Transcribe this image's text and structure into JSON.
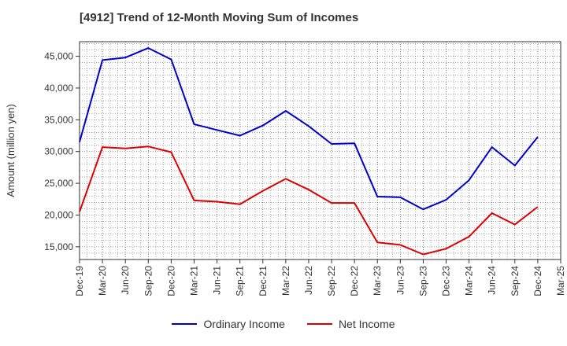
{
  "chart_data": {
    "type": "line",
    "title": "[4912]  Trend of 12-Month Moving Sum of Incomes",
    "xlabel": "",
    "ylabel": "Amount (million yen)",
    "ylim": [
      13000,
      47300
    ],
    "yticks": [
      15000,
      20000,
      25000,
      30000,
      35000,
      40000,
      45000
    ],
    "ytick_labels": [
      "15,000",
      "20,000",
      "25,000",
      "30,000",
      "35,000",
      "40,000",
      "45,000"
    ],
    "categories": [
      "Dec-19",
      "Mar-20",
      "Jun-20",
      "Sep-20",
      "Dec-20",
      "Mar-21",
      "Jun-21",
      "Sep-21",
      "Dec-21",
      "Mar-22",
      "Jun-22",
      "Sep-22",
      "Dec-22",
      "Mar-23",
      "Jun-23",
      "Sep-23",
      "Dec-23",
      "Mar-24",
      "Jun-24",
      "Sep-24",
      "Dec-24",
      "Mar-25"
    ],
    "series": [
      {
        "name": "Ordinary Income",
        "color": "#0000cc",
        "values": [
          31500,
          44400,
          44800,
          46300,
          44500,
          34300,
          33400,
          32500,
          34100,
          36400,
          34000,
          31200,
          31300,
          22900,
          22800,
          20900,
          22400,
          25500,
          30700,
          27800,
          32300,
          null
        ]
      },
      {
        "name": "Net Income",
        "color": "#dd0000",
        "values": [
          20500,
          30700,
          30500,
          30800,
          29900,
          22300,
          22100,
          21700,
          23800,
          25700,
          24000,
          21900,
          21900,
          15700,
          15300,
          13800,
          14700,
          16600,
          20300,
          18500,
          21300,
          null
        ]
      }
    ],
    "grid": true,
    "legend_position": "bottom-center"
  }
}
